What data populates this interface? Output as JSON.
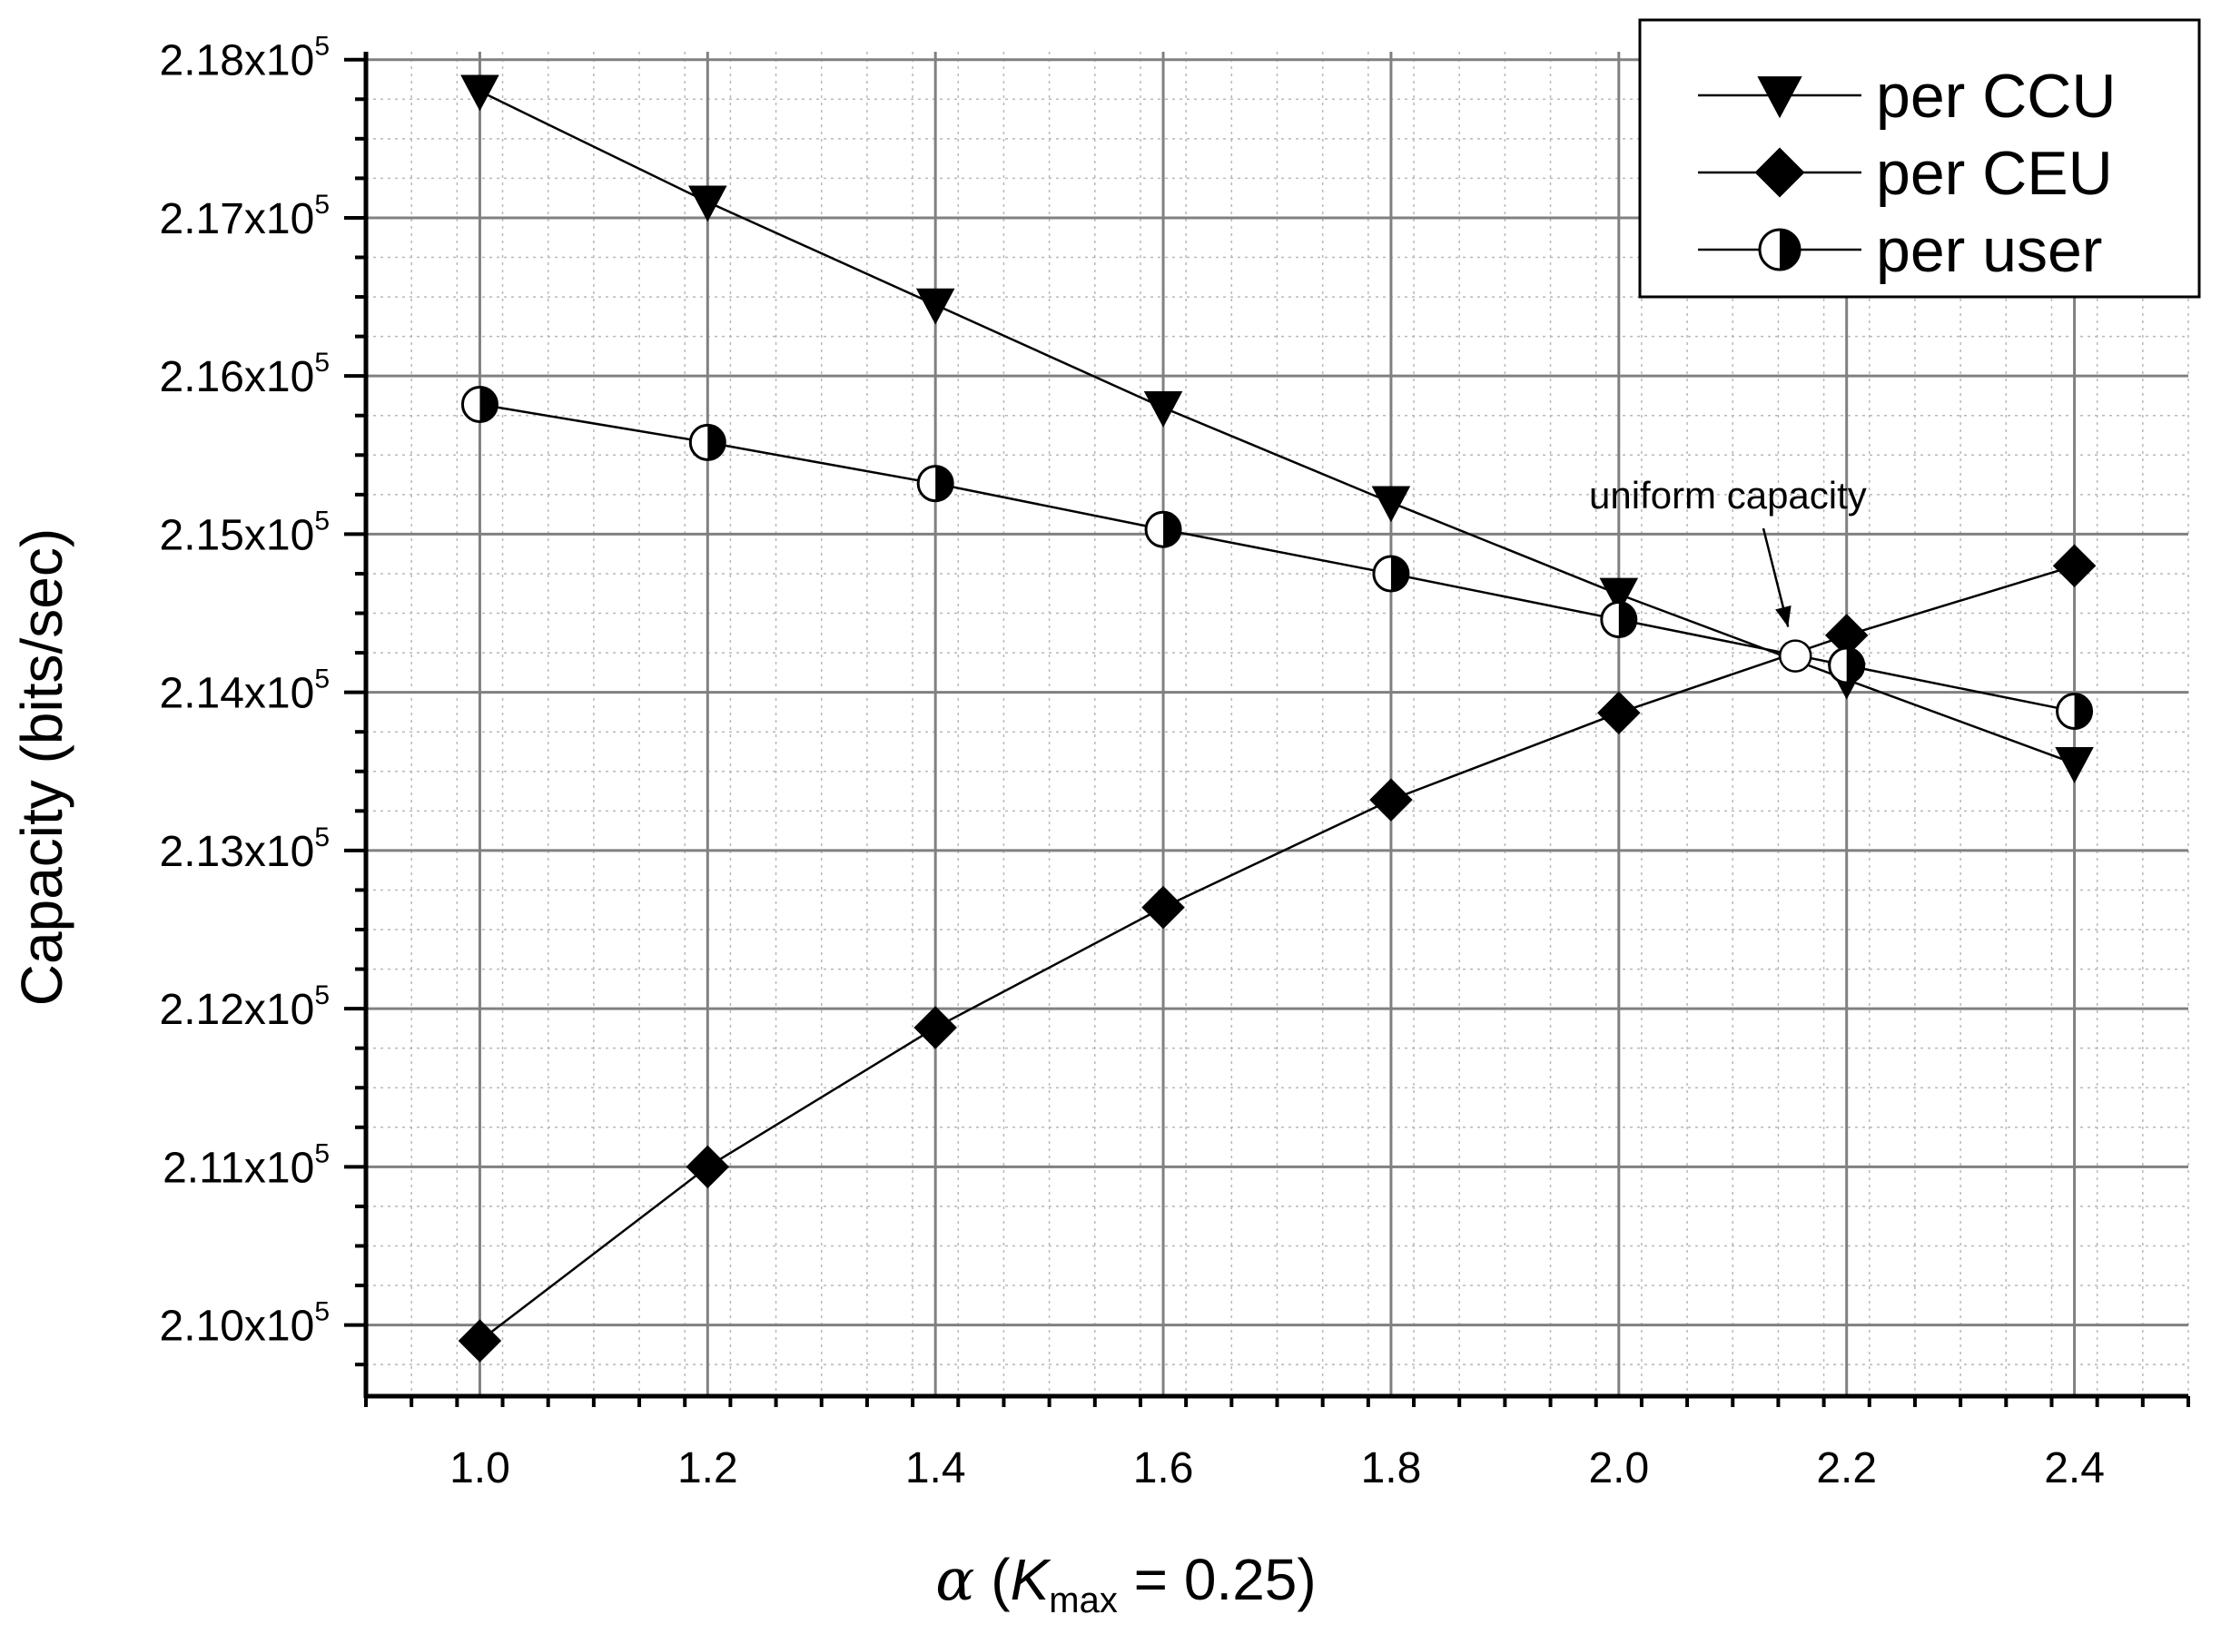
{
  "chart_data": {
    "type": "line",
    "title": "",
    "xlabel": {
      "symbol": "α",
      "open": " (",
      "k": "K",
      "k_sub": "max",
      "rest": " = 0.25)"
    },
    "ylabel": "Capacity (bits/sec)",
    "xlim": [
      0.9,
      2.5
    ],
    "ylim": [
      209550,
      218050
    ],
    "x_ticks": [
      {
        "value": 1.0,
        "label": "1.0"
      },
      {
        "value": 1.2,
        "label": "1.2"
      },
      {
        "value": 1.4,
        "label": "1.4"
      },
      {
        "value": 1.6,
        "label": "1.6"
      },
      {
        "value": 1.8,
        "label": "1.8"
      },
      {
        "value": 2.0,
        "label": "2.0"
      },
      {
        "value": 2.2,
        "label": "2.2"
      },
      {
        "value": 2.4,
        "label": "2.4"
      }
    ],
    "y_ticks": [
      {
        "value": 210000,
        "mant": "2.10x10",
        "exp": "5"
      },
      {
        "value": 211000,
        "mant": "2.11x10",
        "exp": "5"
      },
      {
        "value": 212000,
        "mant": "2.12x10",
        "exp": "5"
      },
      {
        "value": 213000,
        "mant": "2.13x10",
        "exp": "5"
      },
      {
        "value": 214000,
        "mant": "2.14x10",
        "exp": "5"
      },
      {
        "value": 215000,
        "mant": "2.15x10",
        "exp": "5"
      },
      {
        "value": 216000,
        "mant": "2.16x10",
        "exp": "5"
      },
      {
        "value": 217000,
        "mant": "2.17x10",
        "exp": "5"
      },
      {
        "value": 218000,
        "mant": "2.18x10",
        "exp": "5"
      }
    ],
    "grid": true,
    "legend_position": "top-right",
    "series": [
      {
        "name": "per CCU",
        "marker": "triangle-down",
        "x": [
          1.0,
          1.2,
          1.4,
          1.6,
          1.8,
          2.0,
          2.2,
          2.4
        ],
        "y": [
          217800,
          217100,
          216450,
          215800,
          215200,
          214620,
          214080,
          213550
        ]
      },
      {
        "name": "per CEU",
        "marker": "diamond",
        "x": [
          1.0,
          1.2,
          1.4,
          1.6,
          1.8,
          2.0,
          2.2,
          2.4
        ],
        "y": [
          209900,
          211000,
          211880,
          212640,
          213320,
          213870,
          214360,
          214800
        ]
      },
      {
        "name": "per user",
        "marker": "half-circle",
        "x": [
          1.0,
          1.2,
          1.4,
          1.6,
          1.8,
          2.0,
          2.2,
          2.4
        ],
        "y": [
          215820,
          215580,
          215320,
          215030,
          214750,
          214460,
          214170,
          213880
        ]
      }
    ],
    "annotations": [
      {
        "text": "uniform capacity",
        "point": {
          "x": 2.155,
          "y": 214230
        },
        "marker": "open-circle"
      }
    ]
  }
}
